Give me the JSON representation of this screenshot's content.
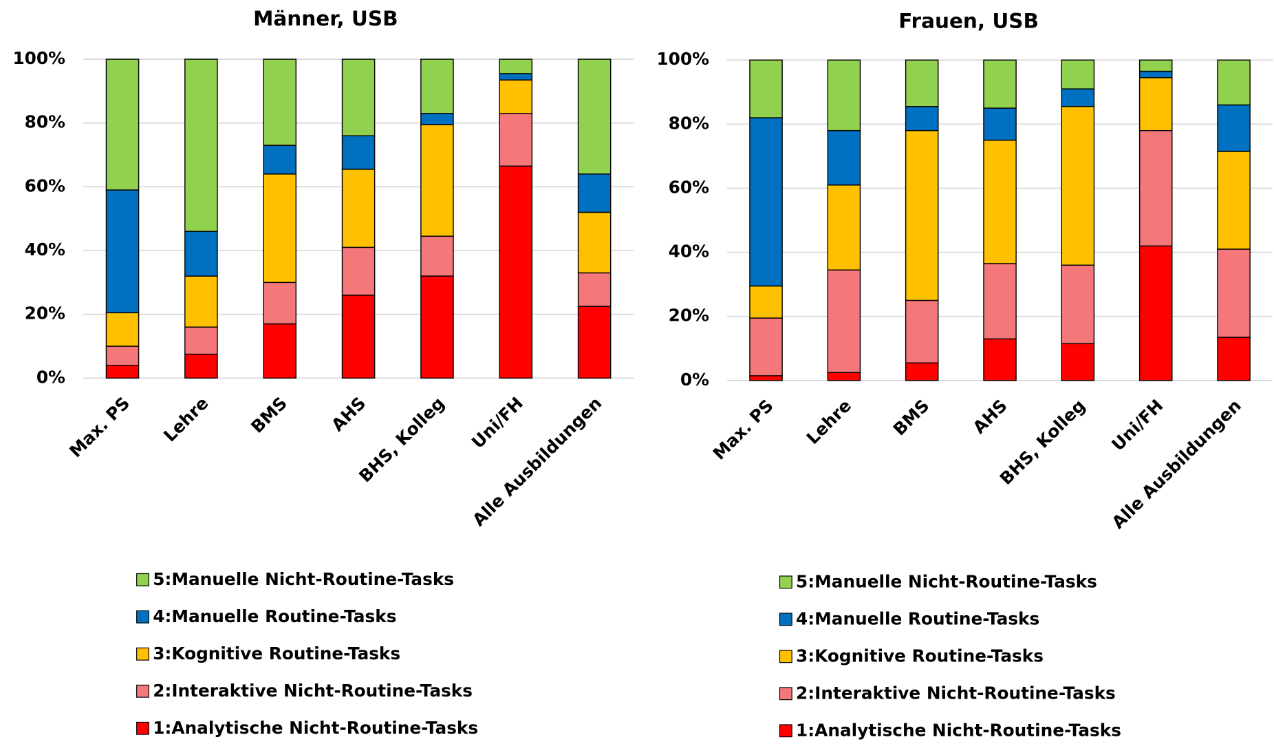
{
  "chart_data": [
    {
      "type": "stacked_bar",
      "title": "Männer, USB",
      "categories": [
        "Max. PS",
        "Lehre",
        "BMS",
        "AHS",
        "BHS, Kolleg",
        "Uni/FH",
        "Alle Ausbildungen"
      ],
      "ylim": [
        0,
        100
      ],
      "yticks": [
        {
          "value": 0,
          "label": "0%"
        },
        {
          "value": 20,
          "label": "20%"
        },
        {
          "value": 40,
          "label": "40%"
        },
        {
          "value": 60,
          "label": "60%"
        },
        {
          "value": 80,
          "label": "80%"
        },
        {
          "value": 100,
          "label": "100%"
        }
      ],
      "grid": true,
      "series": [
        {
          "name": "1:Analytische Nicht-Routine-Tasks",
          "color": "#ff0000",
          "values": [
            4,
            7.5,
            17,
            26,
            32,
            66.5,
            22.5
          ]
        },
        {
          "name": "2:Interaktive Nicht-Routine-Tasks",
          "color": "#f4777a",
          "values": [
            6,
            8.5,
            13,
            15,
            12.5,
            16.5,
            10.5
          ]
        },
        {
          "name": "3:Kognitive Routine-Tasks",
          "color": "#ffc000",
          "values": [
            10.5,
            16,
            34,
            24.5,
            35,
            10.5,
            19
          ]
        },
        {
          "name": "4:Manuelle Routine-Tasks",
          "color": "#0070c0",
          "values": [
            38.5,
            14,
            9,
            10.5,
            3.5,
            2,
            12
          ]
        },
        {
          "name": "5:Manuelle Nicht-Routine-Tasks",
          "color": "#92d050",
          "values": [
            41,
            54,
            27,
            24,
            17,
            4.5,
            36
          ]
        }
      ]
    },
    {
      "type": "stacked_bar",
      "title": "Frauen, USB",
      "categories": [
        "Max. PS",
        "Lehre",
        "BMS",
        "AHS",
        "BHS, Kolleg",
        "Uni/FH",
        "Alle Ausbildungen"
      ],
      "ylim": [
        0,
        100
      ],
      "yticks": [
        {
          "value": 0,
          "label": "0%"
        },
        {
          "value": 20,
          "label": "20%"
        },
        {
          "value": 40,
          "label": "40%"
        },
        {
          "value": 60,
          "label": "60%"
        },
        {
          "value": 80,
          "label": "80%"
        },
        {
          "value": 100,
          "label": "100%"
        }
      ],
      "grid": true,
      "series": [
        {
          "name": "1:Analytische Nicht-Routine-Tasks",
          "color": "#ff0000",
          "values": [
            1.5,
            2.5,
            5.5,
            13,
            11.5,
            42,
            13.5
          ]
        },
        {
          "name": "2:Interaktive Nicht-Routine-Tasks",
          "color": "#f4777a",
          "values": [
            18,
            32,
            19.5,
            23.5,
            24.5,
            36,
            27.5
          ]
        },
        {
          "name": "3:Kognitive Routine-Tasks",
          "color": "#ffc000",
          "values": [
            10,
            26.5,
            53,
            38.5,
            49.5,
            16.5,
            30.5
          ]
        },
        {
          "name": "4:Manuelle Routine-Tasks",
          "color": "#0070c0",
          "values": [
            52.5,
            17,
            7.5,
            10,
            5.5,
            2,
            14.5
          ]
        },
        {
          "name": "5:Manuelle Nicht-Routine-Tasks",
          "color": "#92d050",
          "values": [
            18,
            22,
            14.5,
            15,
            9,
            3.5,
            14
          ]
        }
      ]
    }
  ]
}
